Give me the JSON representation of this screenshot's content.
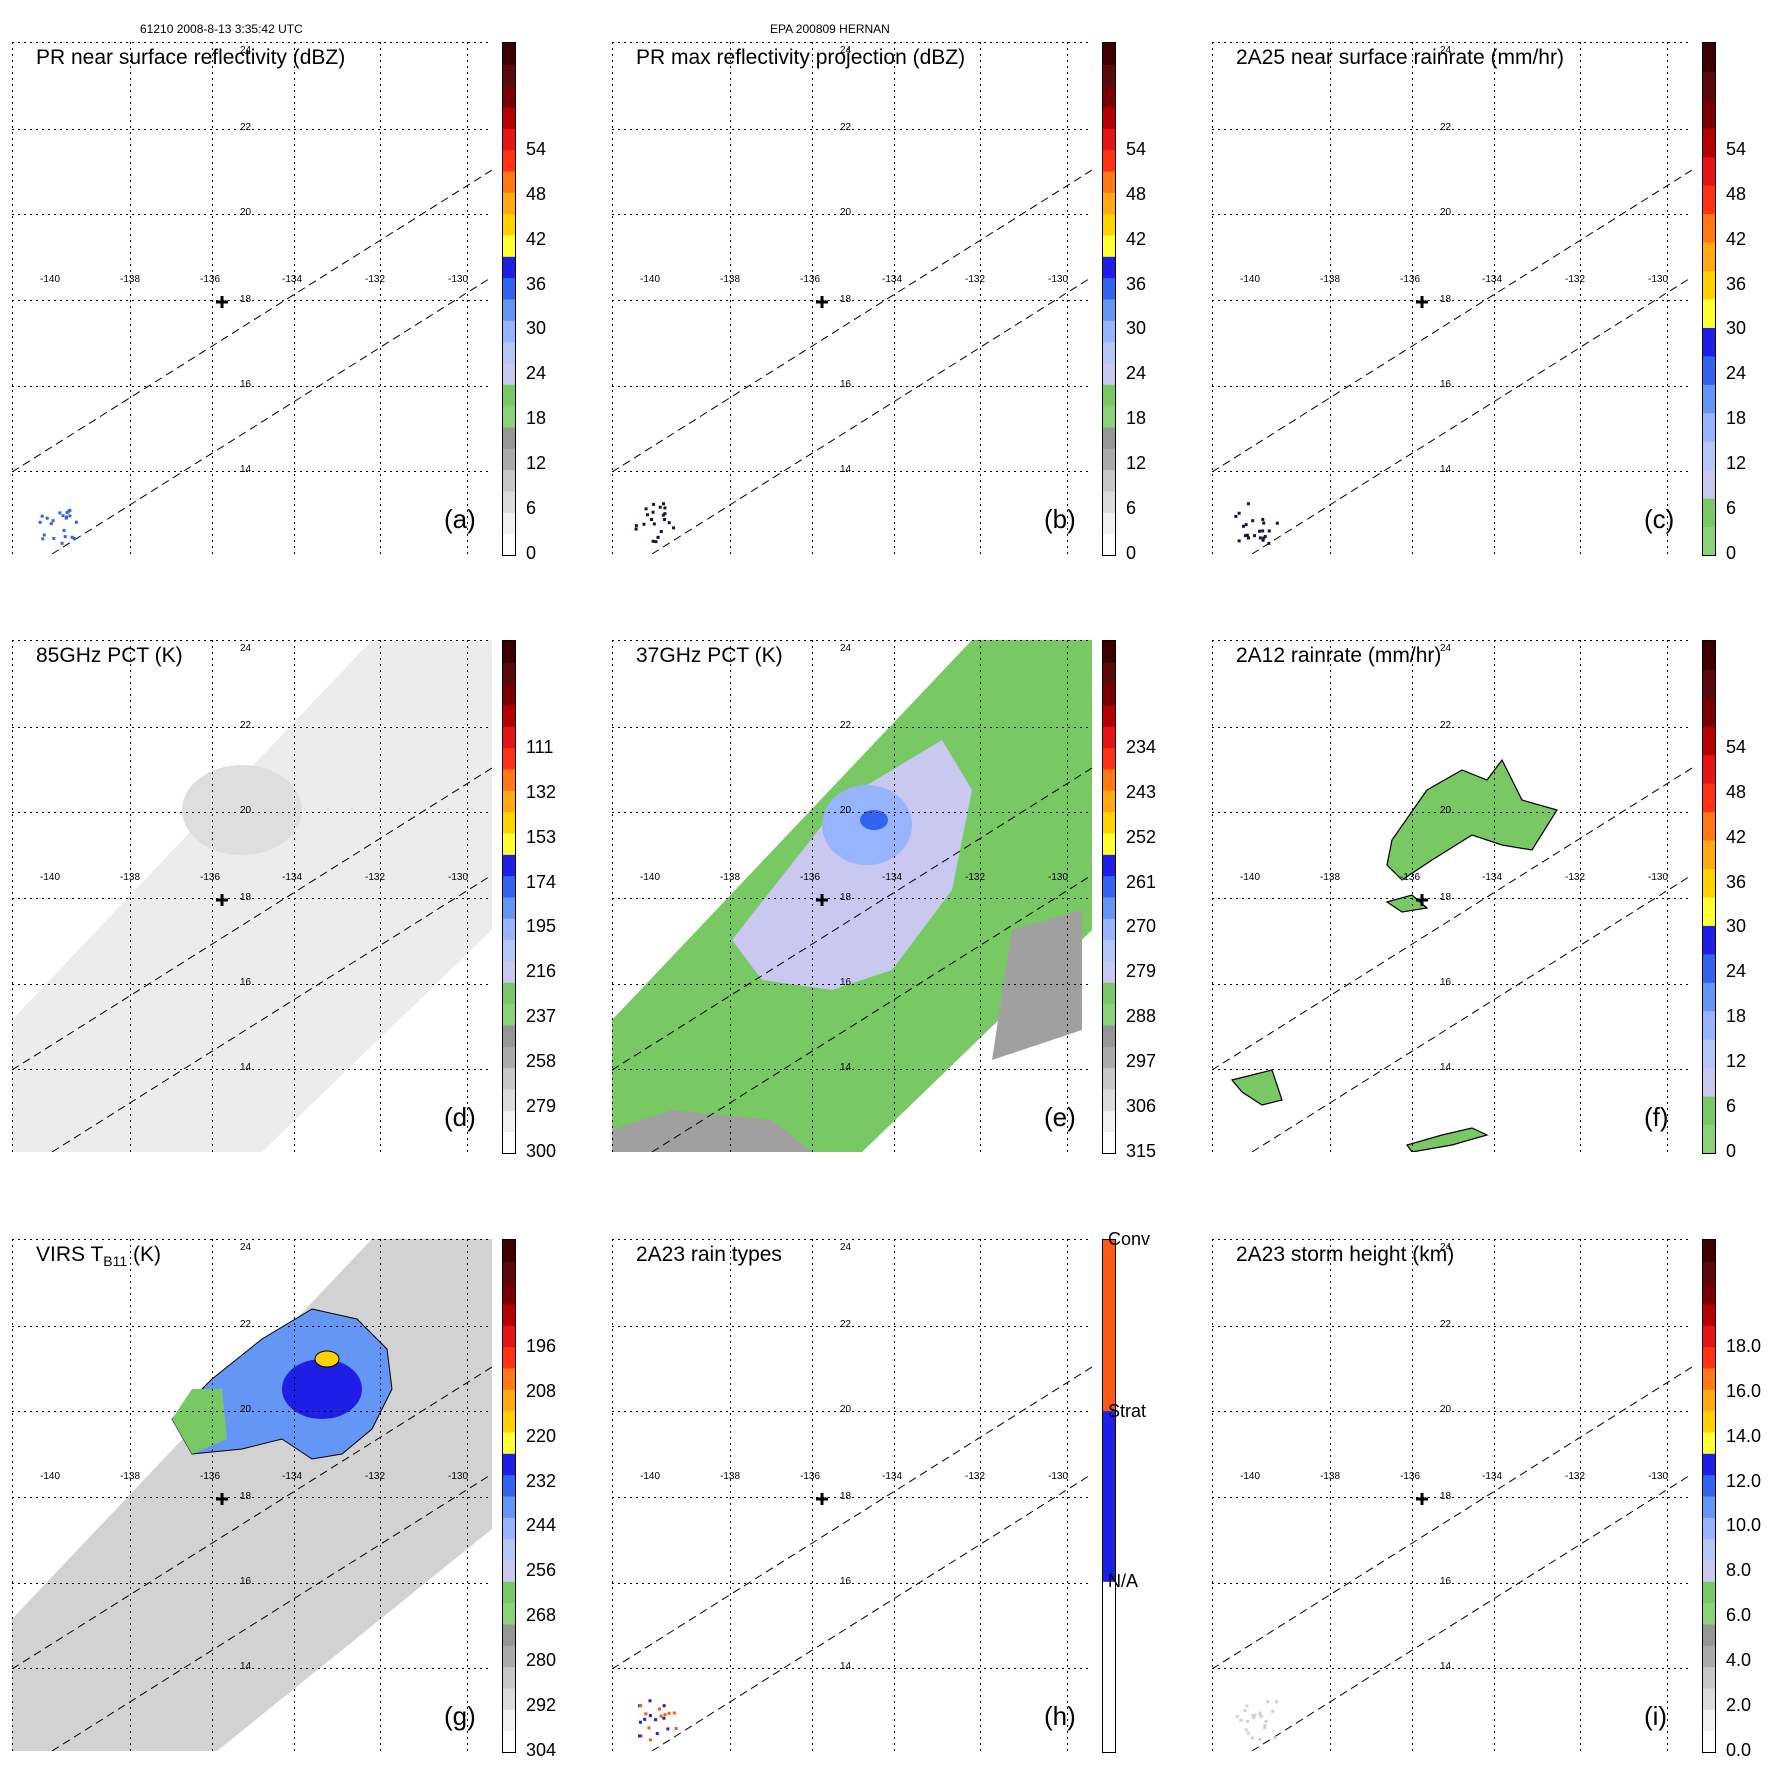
{
  "header": {
    "left": "61210 2008-8-13 3:35:42 UTC",
    "center": "EPA 200809 HERNAN"
  },
  "map": {
    "lon_labels": [
      "-140",
      "-138",
      "-136",
      "-134",
      "-132",
      "-130"
    ],
    "lat_labels": [
      "14",
      "16",
      "18",
      "20",
      "22",
      "24"
    ],
    "storm_center": {
      "lon": -135.6,
      "lat": 18.0
    }
  },
  "panels": [
    {
      "id": "a",
      "title": "PR near surface reflectivity (dBZ)",
      "label": "(a)",
      "swath": "pr",
      "cbar_ticks": [
        "0",
        "6",
        "12",
        "18",
        "24",
        "30",
        "36",
        "42",
        "48",
        "54"
      ],
      "cbar_type": "dbz"
    },
    {
      "id": "b",
      "title": "PR max reflectivity projection (dBZ)",
      "label": "(b)",
      "swath": "pr",
      "cbar_ticks": [
        "0",
        "6",
        "12",
        "18",
        "24",
        "30",
        "36",
        "42",
        "48",
        "54"
      ],
      "cbar_type": "dbz"
    },
    {
      "id": "c",
      "title": "2A25 near surface rainrate (mm/hr)",
      "label": "(c)",
      "swath": "pr",
      "cbar_ticks": [
        "0",
        "6",
        "12",
        "18",
        "24",
        "30",
        "36",
        "42",
        "48",
        "54"
      ],
      "cbar_type": "rain"
    },
    {
      "id": "d",
      "title": "85GHz PCT (K)",
      "label": "(d)",
      "swath": "tmi",
      "cbar_ticks": [
        "300",
        "279",
        "258",
        "237",
        "216",
        "195",
        "174",
        "153",
        "132",
        "111"
      ],
      "cbar_type": "dbz"
    },
    {
      "id": "e",
      "title": "37GHz PCT (K)",
      "label": "(e)",
      "swath": "tmi",
      "cbar_ticks": [
        "315",
        "306",
        "297",
        "288",
        "279",
        "270",
        "261",
        "252",
        "243",
        "234"
      ],
      "cbar_type": "dbz"
    },
    {
      "id": "f",
      "title": "2A12 rainrate (mm/hr)",
      "label": "(f)",
      "swath": "tmi",
      "cbar_ticks": [
        "0",
        "6",
        "12",
        "18",
        "24",
        "30",
        "36",
        "42",
        "48",
        "54"
      ],
      "cbar_type": "rain"
    },
    {
      "id": "g",
      "title_main": "VIRS T",
      "title_sub": "B11",
      "title_end": " (K)",
      "label": "(g)",
      "swath": "tmi",
      "cbar_ticks": [
        "304",
        "292",
        "280",
        "268",
        "256",
        "244",
        "232",
        "220",
        "208",
        "196"
      ],
      "cbar_type": "dbz"
    },
    {
      "id": "h",
      "title": "2A23 rain types",
      "label": "(h)",
      "swath": "pr",
      "cbar_ticks": [
        "N/A",
        "Strat",
        "Conv"
      ],
      "cbar_type": "types"
    },
    {
      "id": "i",
      "title": "2A23 storm height (km)",
      "label": "(i)",
      "swath": "pr",
      "cbar_ticks": [
        "0.0",
        "2.0",
        "4.0",
        "6.0",
        "8.0",
        "10.0",
        "12.0",
        "14.0",
        "16.0",
        "18.0"
      ],
      "cbar_type": "height"
    }
  ],
  "colors": {
    "dbz": [
      "#ffffff",
      "#f0f0f0",
      "#dcdcdc",
      "#c8c8c8",
      "#aaaaaa",
      "#969696",
      "#8cd278",
      "#78c864",
      "#c8c8f0",
      "#b4c8f5",
      "#96b4ff",
      "#6496f5",
      "#3264f0",
      "#1e1ee6",
      "#ffff32",
      "#ffd200",
      "#ffaa14",
      "#ff7814",
      "#ff3214",
      "#e61414",
      "#b40000",
      "#780000",
      "#5a0a0a",
      "#3c0000"
    ],
    "rain": [
      "#8cd278",
      "#78c864",
      "#c8c8f0",
      "#b4c8f5",
      "#96b4ff",
      "#6496f5",
      "#3264f0",
      "#1e1ee6",
      "#ffff32",
      "#ffd200",
      "#ffaa14",
      "#ff7814",
      "#ff3214",
      "#e61414",
      "#b40000",
      "#780000",
      "#5a0a0a",
      "#3c0000"
    ],
    "height": [
      "#ffffff",
      "#f0f0f0",
      "#dcdcdc",
      "#c8c8c8",
      "#aaaaaa",
      "#969696",
      "#8cd278",
      "#78c864",
      "#c8c8f0",
      "#b4c8f5",
      "#96b4ff",
      "#6496f5",
      "#3264f0",
      "#1e1ee6",
      "#ffff32",
      "#ffd200",
      "#ffaa14",
      "#ff7814",
      "#ff3214",
      "#e61414",
      "#b40000",
      "#780000",
      "#5a0a0a",
      "#3c0000"
    ],
    "types": [
      "#ffffff",
      "#1e1ee6",
      "#ff5a14"
    ]
  }
}
